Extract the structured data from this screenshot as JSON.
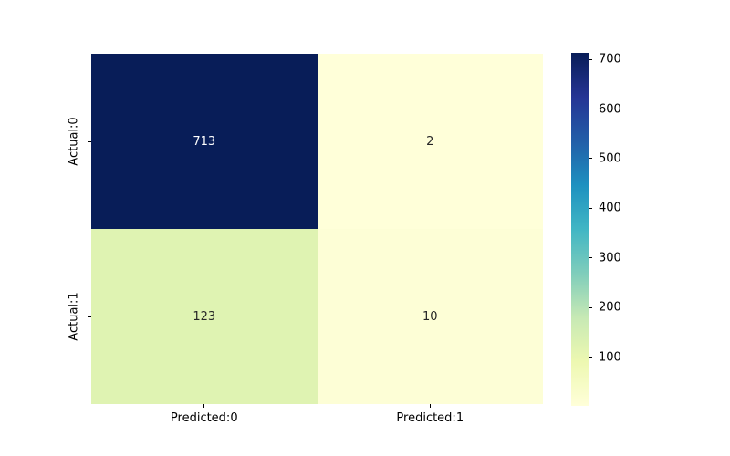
{
  "chart_data": {
    "type": "heatmap",
    "title": "",
    "xlabel": "",
    "ylabel": "",
    "x_tick_labels": [
      "Predicted:0",
      "Predicted:1"
    ],
    "y_tick_labels": [
      "Actual:0",
      "Actual:1"
    ],
    "values": [
      [
        713,
        2
      ],
      [
        123,
        10
      ]
    ],
    "cell_colors": [
      [
        "#081d58",
        "#ffffd9"
      ],
      [
        "#dff3b2",
        "#fdfed6"
      ]
    ],
    "text_colors": [
      [
        "#ffffff",
        "#262626"
      ],
      [
        "#262626",
        "#262626"
      ]
    ],
    "colormap": "YlGnBu",
    "vmin": 2,
    "vmax": 713,
    "colorbar_ticks": [
      700,
      600,
      500,
      400,
      300,
      200,
      100
    ],
    "colorbar_gradient": [
      "#ffffd9",
      "#edf8b1",
      "#c7e9b4",
      "#7fcdbb",
      "#41b6c4",
      "#1d91c0",
      "#225ea8",
      "#253494",
      "#081d58"
    ],
    "legend_position": "right-colorbar",
    "grid": false,
    "background_color": "#ffffff"
  }
}
